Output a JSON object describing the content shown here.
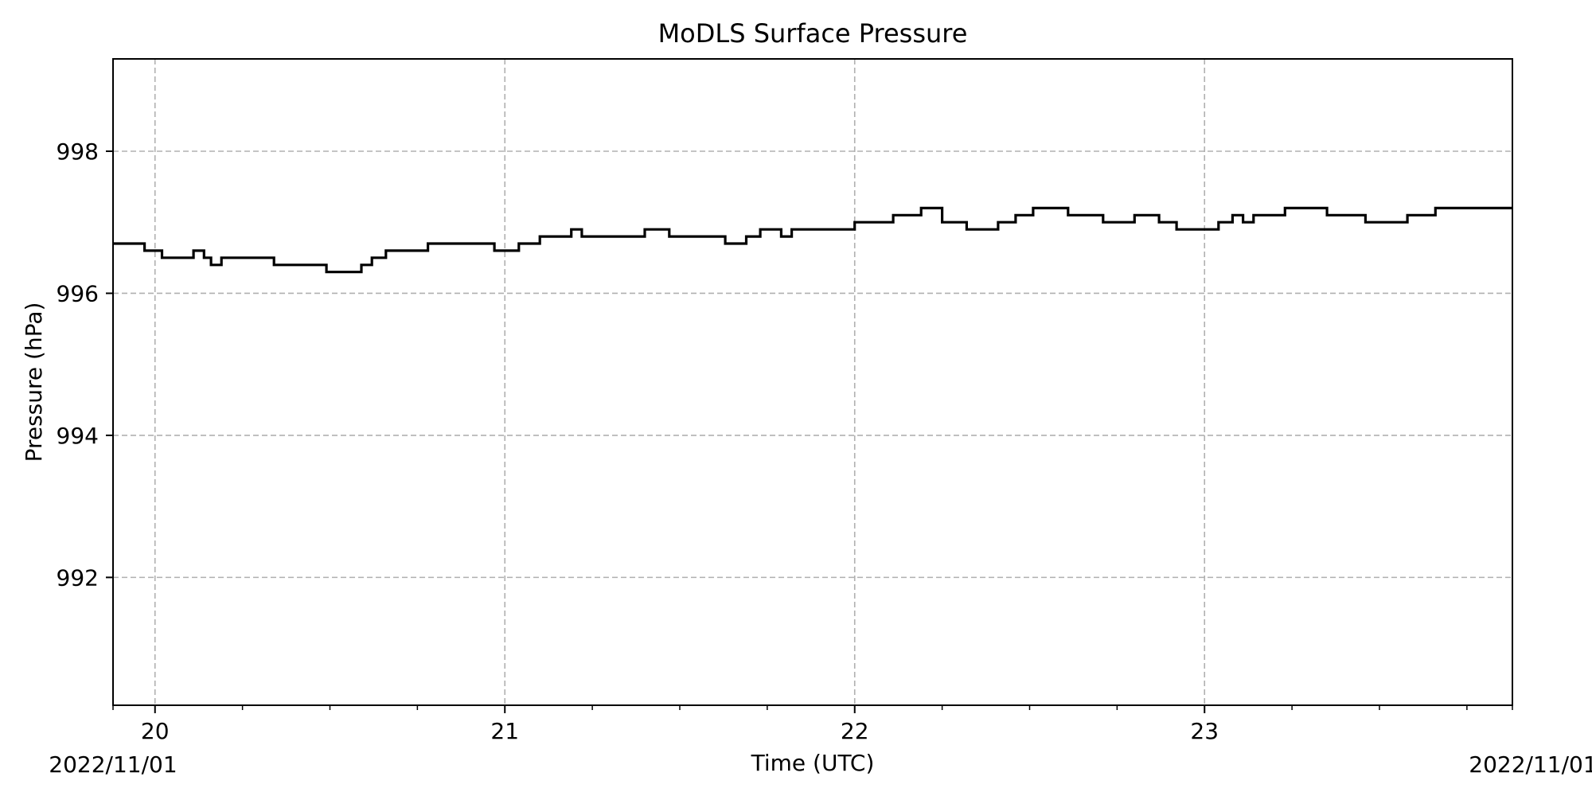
{
  "chart_data": {
    "type": "line",
    "title": "MoDLS Surface Pressure",
    "xlabel": "Time (UTC)",
    "ylabel": "Pressure (hPa)",
    "x_start_label": "2022/11/01",
    "x_end_label": "2022/11/01",
    "xlim": [
      19.88,
      23.88
    ],
    "ylim": [
      990.2,
      999.3
    ],
    "x_ticks": [
      20,
      21,
      22,
      23
    ],
    "x_tick_labels": [
      "20",
      "21",
      "22",
      "23"
    ],
    "x_minor_ticks": [
      19.88,
      20.25,
      20.5,
      20.75,
      21.25,
      21.5,
      21.75,
      22.25,
      22.5,
      22.75,
      23.25,
      23.5,
      23.75,
      23.88
    ],
    "y_ticks": [
      992,
      994,
      996,
      998
    ],
    "y_tick_labels": [
      "992",
      "994",
      "996",
      "998"
    ],
    "grid": true,
    "line_color": "#000000",
    "grid_color": "#b0b0b0",
    "step": true,
    "series": [
      {
        "x": [
          19.88,
          19.97,
          20.02,
          20.11,
          20.14,
          20.16,
          20.19,
          20.22,
          20.34,
          20.49,
          20.59,
          20.62,
          20.66,
          20.78,
          20.97,
          21.04,
          21.1,
          21.19,
          21.22,
          21.4,
          21.47,
          21.63,
          21.69,
          21.73,
          21.79,
          21.82,
          21.94,
          22.0,
          22.11,
          22.19,
          22.25,
          22.32,
          22.41,
          22.46,
          22.51,
          22.61,
          22.71,
          22.8,
          22.87,
          22.92,
          23.04,
          23.08,
          23.11,
          23.14,
          23.23,
          23.35,
          23.46,
          23.58,
          23.66,
          23.88
        ],
        "values": [
          996.7,
          996.6,
          996.5,
          996.6,
          996.5,
          996.4,
          996.5,
          996.5,
          996.4,
          996.3,
          996.4,
          996.5,
          996.6,
          996.7,
          996.6,
          996.7,
          996.8,
          996.9,
          996.8,
          996.9,
          996.8,
          996.7,
          996.8,
          996.9,
          996.8,
          996.9,
          996.9,
          997.0,
          997.1,
          997.2,
          997.0,
          996.9,
          997.0,
          997.1,
          997.2,
          997.1,
          997.0,
          997.1,
          997.0,
          996.9,
          997.0,
          997.1,
          997.0,
          997.1,
          997.2,
          997.1,
          997.0,
          997.1,
          997.2,
          997.2
        ]
      }
    ]
  }
}
